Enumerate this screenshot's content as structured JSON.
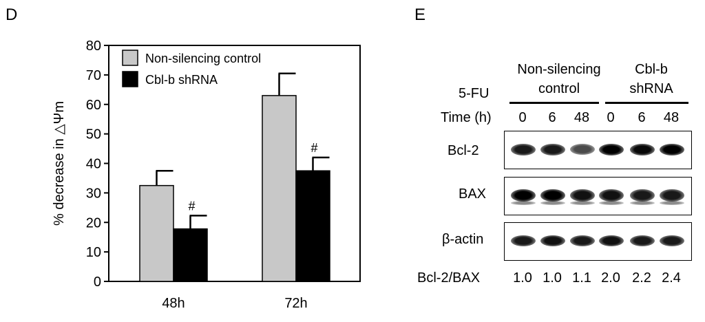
{
  "panel_d": {
    "letter": "D",
    "chart_data": {
      "type": "bar",
      "categories": [
        "48h",
        "72h"
      ],
      "series": [
        {
          "name": "Non-silencing control",
          "color": "#c8c8c8",
          "values": [
            32.5,
            63.0
          ],
          "errors": [
            5.0,
            7.5
          ],
          "marks": [
            "",
            ""
          ]
        },
        {
          "name": "Cbl-b shRNA",
          "color": "#000000",
          "values": [
            17.8,
            37.5
          ],
          "errors": [
            4.5,
            4.5
          ],
          "marks": [
            "#",
            "#"
          ]
        }
      ],
      "ylabel": "% decrease in △Ψm",
      "ylim": [
        0,
        80
      ],
      "yticks": [
        "0",
        "10",
        "20",
        "30",
        "40",
        "50",
        "60",
        "70",
        "80"
      ],
      "legend_position": "top-left",
      "grid": false
    }
  },
  "panel_e": {
    "letter": "E",
    "groups": [
      "Non-silencing control",
      "Cbl-b shRNA"
    ],
    "group_lines": [
      [
        "Non-silencing",
        "control"
      ],
      [
        "Cbl-b",
        "shRNA"
      ]
    ],
    "treatment_label": "5-FU",
    "time_label": "Time (h)",
    "times": [
      "0",
      "6",
      "48",
      "0",
      "6",
      "48"
    ],
    "blots": [
      {
        "label": "Bcl-2",
        "band_intensity": [
          0.85,
          0.85,
          0.55,
          1.0,
          0.95,
          1.0
        ]
      },
      {
        "label": "BAX",
        "band_intensity": [
          1.0,
          1.0,
          0.9,
          0.9,
          0.85,
          0.85
        ]
      },
      {
        "label": "β-actin",
        "band_intensity": [
          0.85,
          0.9,
          0.85,
          0.9,
          0.85,
          0.85
        ]
      }
    ],
    "ratio_label": "Bcl-2/BAX",
    "ratios": [
      "1.0",
      "1.0",
      "1.1",
      "2.0",
      "2.2",
      "2.4"
    ]
  }
}
